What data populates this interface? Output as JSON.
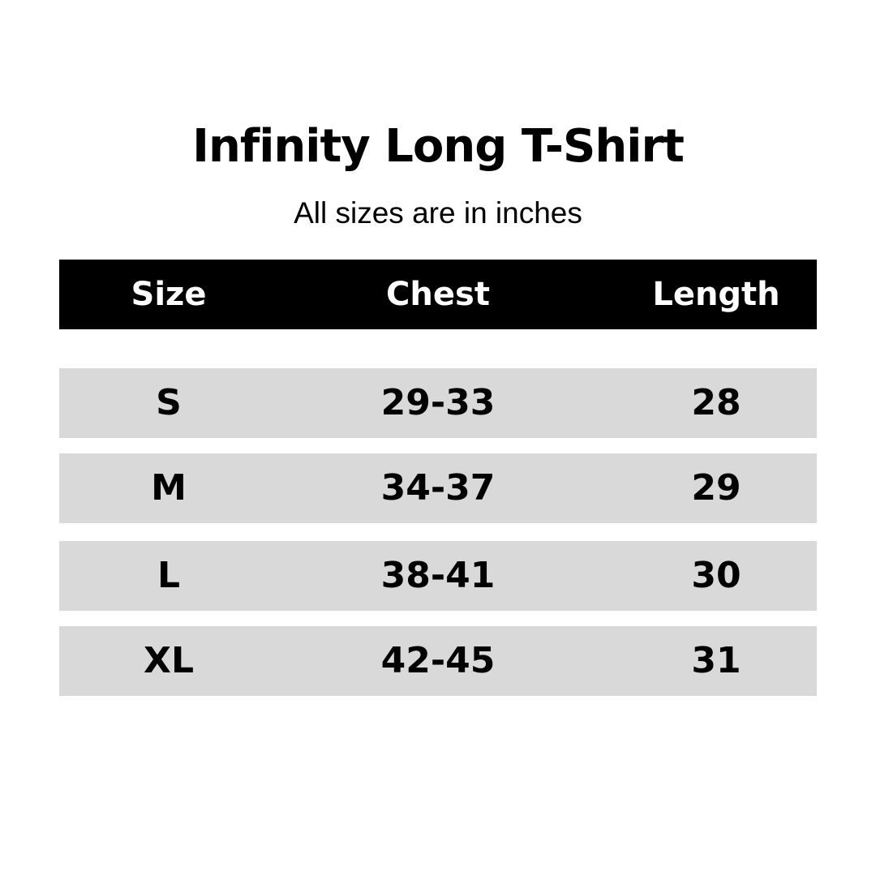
{
  "title": "Infinity Long T-Shirt",
  "subtitle": "All sizes are in inches",
  "colors": {
    "header_bg": "#000000",
    "row_bg": "#d9d9d9"
  },
  "table": {
    "headers": [
      "Size",
      "Chest",
      "Length"
    ],
    "rows": [
      [
        "S",
        "29-33",
        "28"
      ],
      [
        "M",
        "34-37",
        "29"
      ],
      [
        "L",
        "38-41",
        "30"
      ],
      [
        "XL",
        "42-45",
        "31"
      ]
    ]
  }
}
